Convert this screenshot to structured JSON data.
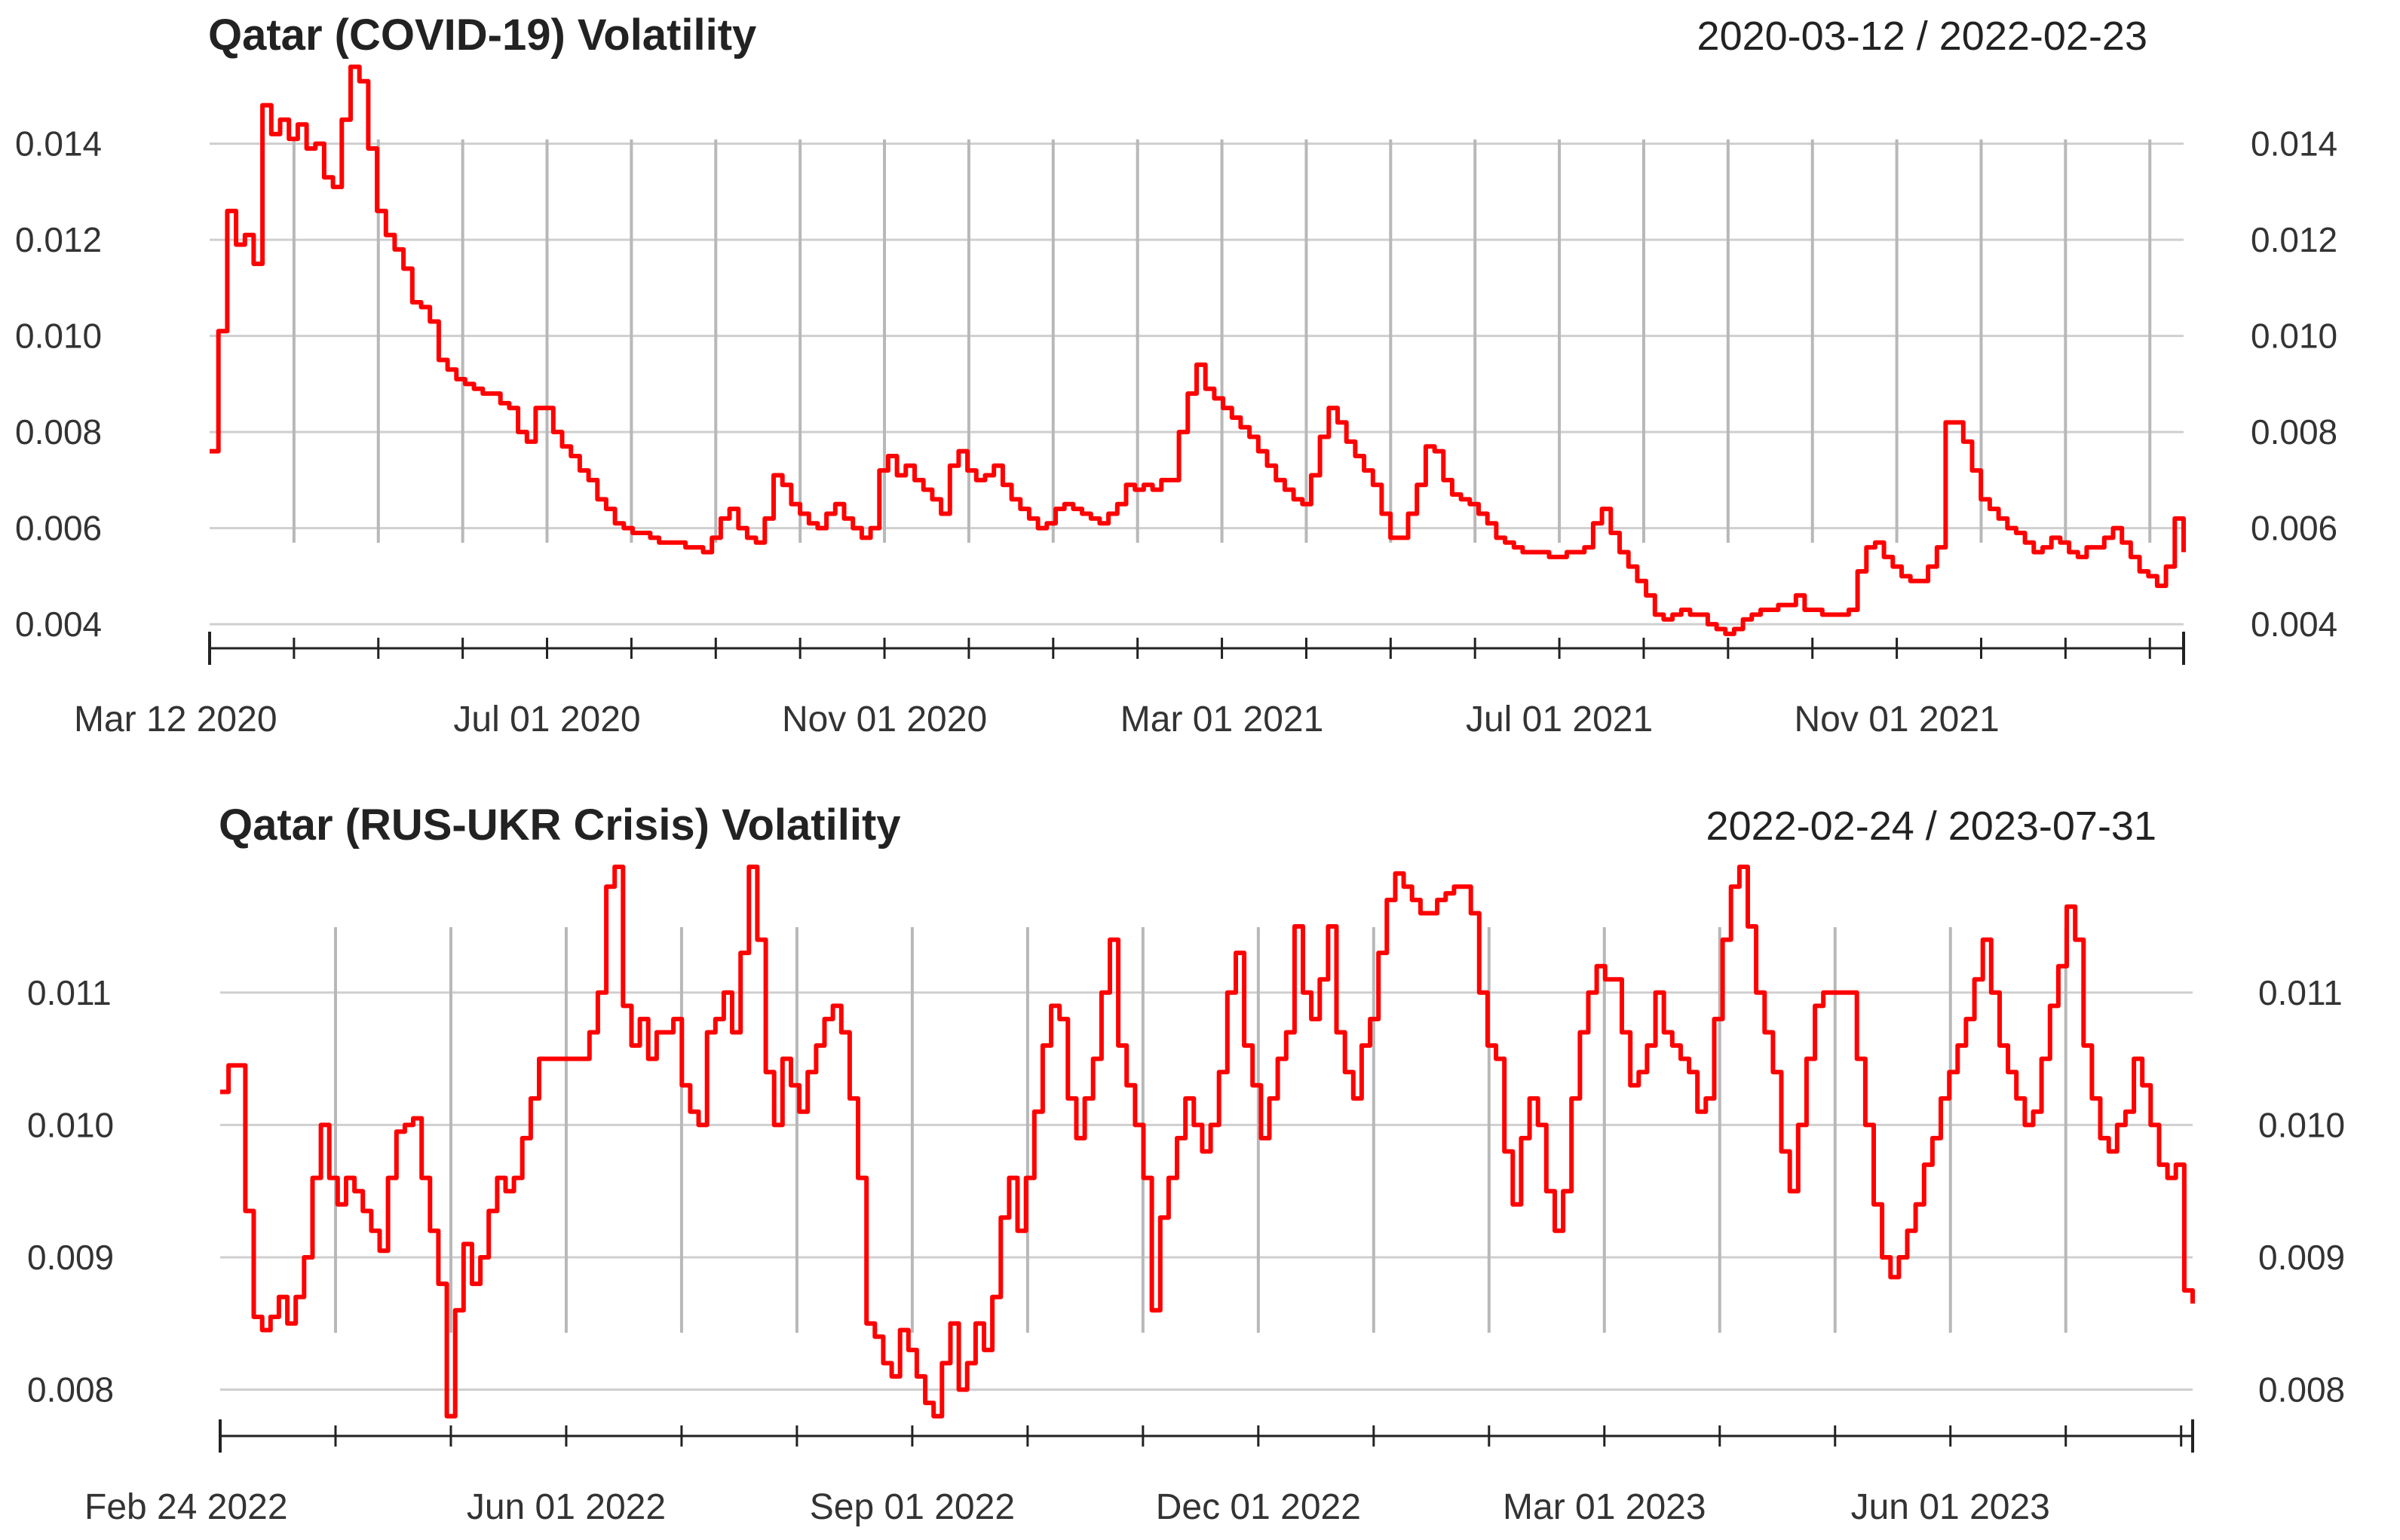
{
  "chart_data": [
    {
      "type": "line",
      "title": "Qatar (COVID-19) Volatility",
      "date_range": "2020-03-12 / 2022-02-23",
      "color": "#ff0000",
      "ylim": [
        0.0035,
        0.0155
      ],
      "y_ticks": [
        0.004,
        0.006,
        0.008,
        0.01,
        0.012,
        0.014
      ],
      "y_tick_labels": [
        "0.004",
        "0.006",
        "0.008",
        "0.010",
        "0.012",
        "0.014"
      ],
      "x_labels": [
        "Mar 12 2020",
        "Jul 01 2020",
        "Nov 01 2020",
        "Mar 01 2021",
        "Jul 01 2021",
        "Nov 01 2021"
      ],
      "x_label_pos": [
        0,
        4,
        8,
        12,
        16,
        20
      ],
      "x_grid": [
        1,
        2,
        3,
        4,
        5,
        6,
        7,
        8,
        9,
        10,
        11,
        12,
        13,
        14,
        15,
        16,
        17,
        18,
        19,
        20,
        21,
        22,
        23
      ],
      "x_span": 23.4,
      "values": [
        0.0076,
        0.0101,
        0.0126,
        0.0119,
        0.0121,
        0.0115,
        0.0148,
        0.0142,
        0.0145,
        0.0141,
        0.0144,
        0.0139,
        0.014,
        0.0133,
        0.0131,
        0.0145,
        0.0156,
        0.0153,
        0.0139,
        0.0126,
        0.0121,
        0.0118,
        0.0114,
        0.0107,
        0.0106,
        0.0103,
        0.0095,
        0.0093,
        0.0091,
        0.009,
        0.0089,
        0.0088,
        0.0088,
        0.0086,
        0.0085,
        0.008,
        0.0078,
        0.0085,
        0.0085,
        0.008,
        0.0077,
        0.0075,
        0.0072,
        0.007,
        0.0066,
        0.0064,
        0.0061,
        0.006,
        0.0059,
        0.0059,
        0.0058,
        0.0057,
        0.0057,
        0.0057,
        0.0056,
        0.0056,
        0.0055,
        0.0058,
        0.0062,
        0.0064,
        0.006,
        0.0058,
        0.0057,
        0.0062,
        0.0071,
        0.0069,
        0.0065,
        0.0063,
        0.0061,
        0.006,
        0.0063,
        0.0065,
        0.0062,
        0.006,
        0.0058,
        0.006,
        0.0072,
        0.0075,
        0.0071,
        0.0073,
        0.007,
        0.0068,
        0.0066,
        0.0063,
        0.0073,
        0.0076,
        0.0072,
        0.007,
        0.0071,
        0.0073,
        0.0069,
        0.0066,
        0.0064,
        0.0062,
        0.006,
        0.0061,
        0.0064,
        0.0065,
        0.0064,
        0.0063,
        0.0062,
        0.0061,
        0.0063,
        0.0065,
        0.0069,
        0.0068,
        0.0069,
        0.0068,
        0.007,
        0.007,
        0.008,
        0.0088,
        0.0094,
        0.0089,
        0.0087,
        0.0085,
        0.0083,
        0.0081,
        0.0079,
        0.0076,
        0.0073,
        0.007,
        0.0068,
        0.0066,
        0.0065,
        0.0071,
        0.0079,
        0.0085,
        0.0082,
        0.0078,
        0.0075,
        0.0072,
        0.0069,
        0.0063,
        0.0058,
        0.0058,
        0.0063,
        0.0069,
        0.0077,
        0.0076,
        0.007,
        0.0067,
        0.0066,
        0.0065,
        0.0063,
        0.0061,
        0.0058,
        0.0057,
        0.0056,
        0.0055,
        0.0055,
        0.0055,
        0.0054,
        0.0054,
        0.0055,
        0.0055,
        0.0056,
        0.0061,
        0.0064,
        0.0059,
        0.0055,
        0.0052,
        0.0049,
        0.0046,
        0.0042,
        0.0041,
        0.0042,
        0.0043,
        0.0042,
        0.0042,
        0.004,
        0.0039,
        0.0038,
        0.0039,
        0.0041,
        0.0042,
        0.0043,
        0.0043,
        0.0044,
        0.0044,
        0.0046,
        0.0043,
        0.0043,
        0.0042,
        0.0042,
        0.0042,
        0.0043,
        0.0051,
        0.0056,
        0.0057,
        0.0054,
        0.0052,
        0.005,
        0.0049,
        0.0049,
        0.0052,
        0.0056,
        0.0082,
        0.0082,
        0.0078,
        0.0072,
        0.0066,
        0.0064,
        0.0062,
        0.006,
        0.0059,
        0.0057,
        0.0055,
        0.0056,
        0.0058,
        0.0057,
        0.0055,
        0.0054,
        0.0056,
        0.0056,
        0.0058,
        0.006,
        0.0057,
        0.0054,
        0.0051,
        0.005,
        0.0048,
        0.0052,
        0.0062,
        0.0055
      ]
    },
    {
      "type": "line",
      "title": "Qatar (RUS-UKR Crisis) Volatility",
      "date_range": "2022-02-24 / 2023-07-31",
      "color": "#ff0000",
      "ylim": [
        0.00765,
        0.01195
      ],
      "y_ticks": [
        0.008,
        0.009,
        0.01,
        0.011
      ],
      "y_tick_labels": [
        "0.008",
        "0.009",
        "0.010",
        "0.011"
      ],
      "x_labels": [
        "Feb 24 2022",
        "Jun 01 2022",
        "Sep 01 2022",
        "Dec 01 2022",
        "Mar 01 2023",
        "Jun 01 2023"
      ],
      "x_label_pos": [
        0,
        3,
        6,
        9,
        12,
        15
      ],
      "x_grid": [
        1,
        2,
        3,
        4,
        5,
        6,
        7,
        8,
        9,
        10,
        11,
        12,
        13,
        14,
        15,
        16
      ],
      "x_span": 17.1,
      "values": [
        0.01025,
        0.01045,
        0.01045,
        0.00935,
        0.00855,
        0.00845,
        0.00855,
        0.0087,
        0.0085,
        0.0087,
        0.009,
        0.0096,
        0.01,
        0.0096,
        0.0094,
        0.0096,
        0.0095,
        0.00935,
        0.0092,
        0.00905,
        0.0096,
        0.00995,
        0.01,
        0.01005,
        0.0096,
        0.0092,
        0.0088,
        0.0078,
        0.0086,
        0.0091,
        0.0088,
        0.009,
        0.00935,
        0.0096,
        0.0095,
        0.0096,
        0.0099,
        0.0102,
        0.0105,
        0.0105,
        0.0105,
        0.0105,
        0.0105,
        0.0105,
        0.0107,
        0.011,
        0.0118,
        0.01195,
        0.0109,
        0.0106,
        0.0108,
        0.0105,
        0.0107,
        0.0107,
        0.0108,
        0.0103,
        0.0101,
        0.01,
        0.0107,
        0.0108,
        0.011,
        0.0107,
        0.0113,
        0.01195,
        0.0114,
        0.0104,
        0.01,
        0.0105,
        0.0103,
        0.0101,
        0.0104,
        0.0106,
        0.0108,
        0.0109,
        0.0107,
        0.0102,
        0.0096,
        0.0085,
        0.0084,
        0.0082,
        0.0081,
        0.00845,
        0.0083,
        0.0081,
        0.0079,
        0.0078,
        0.0082,
        0.0085,
        0.008,
        0.0082,
        0.0085,
        0.0083,
        0.0087,
        0.0093,
        0.0096,
        0.0092,
        0.0096,
        0.0101,
        0.0106,
        0.0109,
        0.0108,
        0.0102,
        0.0099,
        0.0102,
        0.0105,
        0.011,
        0.0114,
        0.0106,
        0.0103,
        0.01,
        0.0096,
        0.0086,
        0.0093,
        0.0096,
        0.0099,
        0.0102,
        0.01,
        0.0098,
        0.01,
        0.0104,
        0.011,
        0.0113,
        0.0106,
        0.0103,
        0.0099,
        0.0102,
        0.0105,
        0.0107,
        0.0115,
        0.011,
        0.0108,
        0.0111,
        0.0115,
        0.0107,
        0.0104,
        0.0102,
        0.0106,
        0.0108,
        0.0113,
        0.0117,
        0.0119,
        0.0118,
        0.0117,
        0.0116,
        0.0116,
        0.0117,
        0.01175,
        0.0118,
        0.0118,
        0.0116,
        0.011,
        0.0106,
        0.0105,
        0.0098,
        0.0094,
        0.0099,
        0.0102,
        0.01,
        0.0095,
        0.0092,
        0.0095,
        0.0102,
        0.0107,
        0.011,
        0.0112,
        0.0111,
        0.0111,
        0.0107,
        0.0103,
        0.0104,
        0.0106,
        0.011,
        0.0107,
        0.0106,
        0.0105,
        0.0104,
        0.0101,
        0.0102,
        0.0108,
        0.0114,
        0.0118,
        0.01195,
        0.0115,
        0.011,
        0.0107,
        0.0104,
        0.0098,
        0.0095,
        0.01,
        0.0105,
        0.0109,
        0.011,
        0.011,
        0.011,
        0.011,
        0.0105,
        0.01,
        0.0094,
        0.009,
        0.00885,
        0.009,
        0.0092,
        0.0094,
        0.0097,
        0.0099,
        0.0102,
        0.0104,
        0.0106,
        0.0108,
        0.0111,
        0.0114,
        0.011,
        0.0106,
        0.0104,
        0.0102,
        0.01,
        0.0101,
        0.0105,
        0.0109,
        0.0112,
        0.01165,
        0.0114,
        0.0106,
        0.0102,
        0.0099,
        0.0098,
        0.01,
        0.0101,
        0.0105,
        0.0103,
        0.01,
        0.0097,
        0.0096,
        0.0097,
        0.00875,
        0.00865
      ]
    }
  ]
}
